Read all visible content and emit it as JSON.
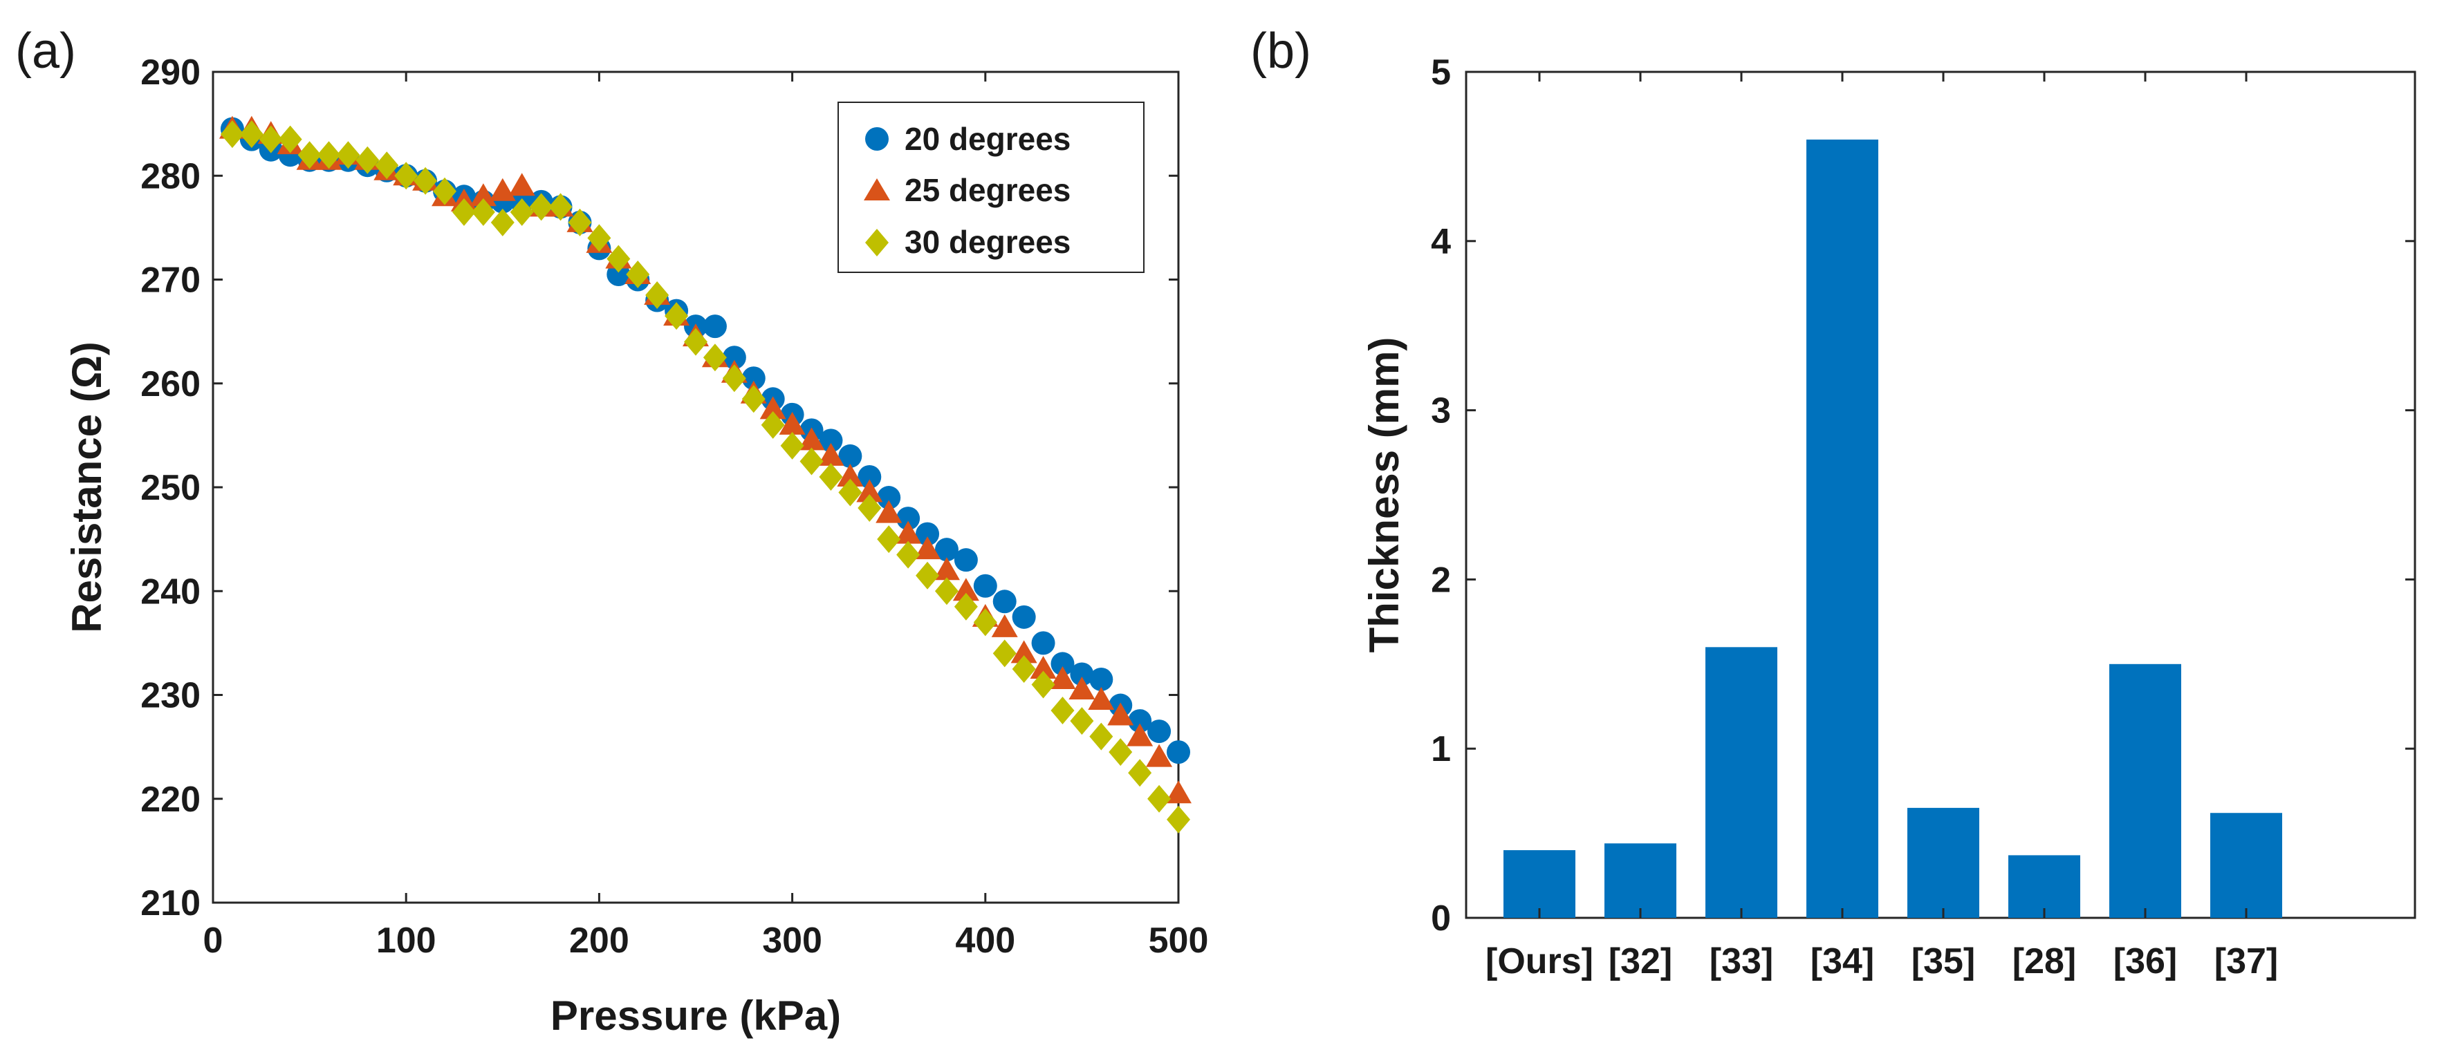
{
  "chart_data": [
    {
      "panel_label": "(a)",
      "type": "scatter",
      "xlabel": "Pressure (kPa)",
      "ylabel": "Resistance (Ω)",
      "xlim": [
        0,
        500
      ],
      "ylim": [
        210,
        290
      ],
      "xticks": [
        0,
        100,
        200,
        300,
        400,
        500
      ],
      "yticks": [
        210,
        220,
        230,
        240,
        250,
        260,
        270,
        280,
        290
      ],
      "grid": false,
      "legend_position": "top-right",
      "x": [
        10,
        20,
        30,
        40,
        50,
        60,
        70,
        80,
        90,
        100,
        110,
        120,
        130,
        140,
        150,
        160,
        170,
        180,
        190,
        200,
        210,
        220,
        230,
        240,
        250,
        260,
        270,
        280,
        290,
        300,
        310,
        320,
        330,
        340,
        350,
        360,
        370,
        380,
        390,
        400,
        410,
        420,
        430,
        440,
        450,
        460,
        470,
        480,
        490,
        500
      ],
      "series": [
        {
          "name": "20 degrees",
          "marker": "circle",
          "color": "#0072BD",
          "values": [
            284.5,
            283.5,
            282.5,
            282.0,
            281.5,
            281.5,
            281.5,
            281.0,
            280.5,
            280.0,
            279.5,
            278.5,
            278.0,
            277.5,
            277.5,
            277.5,
            277.5,
            277.0,
            275.5,
            273.0,
            270.5,
            270.0,
            268.0,
            267.0,
            265.5,
            265.5,
            262.5,
            260.5,
            258.5,
            257.0,
            255.5,
            254.5,
            253.0,
            251.0,
            249.0,
            247.0,
            245.5,
            244.0,
            243.0,
            240.5,
            239.0,
            237.5,
            235.0,
            233.0,
            232.0,
            231.5,
            229.0,
            227.5,
            226.5,
            224.5
          ]
        },
        {
          "name": "25 degrees",
          "marker": "triangle",
          "color": "#D95319",
          "values": [
            284.5,
            284.5,
            284.0,
            283.0,
            281.5,
            281.5,
            282.0,
            281.5,
            280.5,
            280.0,
            279.5,
            278.0,
            277.5,
            278.0,
            278.5,
            279.0,
            277.0,
            277.0,
            275.5,
            273.5,
            272.0,
            270.5,
            268.5,
            266.5,
            264.5,
            262.5,
            261.0,
            259.0,
            257.5,
            256.0,
            254.5,
            253.0,
            251.0,
            249.5,
            247.5,
            245.5,
            244.0,
            242.0,
            240.0,
            237.5,
            236.5,
            234.0,
            232.5,
            231.5,
            230.5,
            229.5,
            228.0,
            226.0,
            224.0,
            220.5
          ]
        },
        {
          "name": "30 degrees",
          "marker": "diamond",
          "color": "#BFBF00",
          "values": [
            284.0,
            284.0,
            283.5,
            283.5,
            282.0,
            282.0,
            282.0,
            281.5,
            281.0,
            280.0,
            279.5,
            278.5,
            276.5,
            276.5,
            275.5,
            276.5,
            277.0,
            277.0,
            275.5,
            274.0,
            272.0,
            270.5,
            268.5,
            266.5,
            264.0,
            262.5,
            260.5,
            258.5,
            256.0,
            254.0,
            252.5,
            251.0,
            249.5,
            248.0,
            245.0,
            243.5,
            241.5,
            240.0,
            238.5,
            237.0,
            234.0,
            232.5,
            231.0,
            228.5,
            227.5,
            226.0,
            224.5,
            222.5,
            220.0,
            218.0
          ]
        }
      ]
    },
    {
      "panel_label": "(b)",
      "type": "bar",
      "xlabel": "",
      "ylabel": "Thickness (mm)",
      "ylim": [
        0,
        5
      ],
      "yticks": [
        0,
        1,
        2,
        3,
        4,
        5
      ],
      "grid": false,
      "color": "#0072BD",
      "categories": [
        "[Ours]",
        "[32]",
        "[33]",
        "[34]",
        "[35]",
        "[28]",
        "[36]",
        "[37]"
      ],
      "values": [
        0.4,
        0.44,
        1.6,
        4.6,
        0.65,
        0.37,
        1.5,
        0.62
      ]
    }
  ]
}
